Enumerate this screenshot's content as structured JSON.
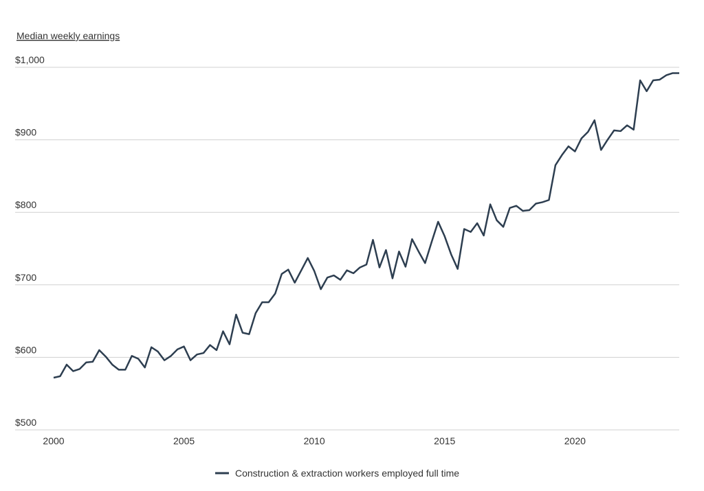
{
  "chart_data": {
    "type": "line",
    "y_axis_label": "Median weekly earnings",
    "x": [
      2000,
      2000.25,
      2000.5,
      2000.75,
      2001,
      2001.25,
      2001.5,
      2001.75,
      2002,
      2002.25,
      2002.5,
      2002.75,
      2003,
      2003.25,
      2003.5,
      2003.75,
      2004,
      2004.25,
      2004.5,
      2004.75,
      2005,
      2005.25,
      2005.5,
      2005.75,
      2006,
      2006.25,
      2006.5,
      2006.75,
      2007,
      2007.25,
      2007.5,
      2007.75,
      2008,
      2008.25,
      2008.5,
      2008.75,
      2009,
      2009.25,
      2009.5,
      2009.75,
      2010,
      2010.25,
      2010.5,
      2010.75,
      2011,
      2011.25,
      2011.5,
      2011.75,
      2012,
      2012.25,
      2012.5,
      2012.75,
      2013,
      2013.25,
      2013.5,
      2013.75,
      2014,
      2014.25,
      2014.5,
      2014.75,
      2015,
      2015.25,
      2015.5,
      2015.75,
      2016,
      2016.25,
      2016.5,
      2016.75,
      2017,
      2017.25,
      2017.5,
      2017.75,
      2018,
      2018.25,
      2018.5,
      2018.75,
      2019,
      2019.25,
      2019.5,
      2019.75,
      2020,
      2020.25,
      2020.5,
      2020.75,
      2021,
      2021.25,
      2021.5,
      2021.75,
      2022,
      2022.25,
      2022.5,
      2022.75,
      2023,
      2023.25,
      2023.5,
      2023.75,
      2024
    ],
    "series": [
      {
        "name": "Construction & extraction workers employed full time",
        "color": "#2d3e50",
        "values": [
          572,
          574,
          590,
          581,
          584,
          593,
          594,
          610,
          601,
          590,
          583,
          583,
          602,
          598,
          586,
          614,
          608,
          596,
          602,
          611,
          615,
          596,
          604,
          606,
          617,
          610,
          636,
          618,
          659,
          634,
          632,
          661,
          676,
          676,
          688,
          715,
          721,
          703,
          720,
          737,
          719,
          694,
          710,
          713,
          707,
          720,
          716,
          724,
          728,
          762,
          724,
          748,
          709,
          746,
          725,
          763,
          746,
          730,
          759,
          787,
          767,
          742,
          722,
          777,
          773,
          785,
          768,
          811,
          789,
          780,
          806,
          809,
          802,
          803,
          812,
          814,
          817,
          865,
          879,
          891,
          884,
          902,
          911,
          927,
          886,
          900,
          913,
          912,
          920,
          914,
          982,
          967,
          982,
          983,
          989,
          992,
          992
        ]
      }
    ],
    "xlim": [
      2000,
      2024
    ],
    "xticks": [
      2000,
      2005,
      2010,
      2015,
      2020
    ],
    "ylim": [
      500,
      1000
    ],
    "yticks": [
      {
        "value": 500,
        "label": "$500"
      },
      {
        "value": 600,
        "label": "$600"
      },
      {
        "value": 700,
        "label": "$700"
      },
      {
        "value": 800,
        "label": "$800"
      },
      {
        "value": 900,
        "label": "$900"
      },
      {
        "value": 1000,
        "label": "$1,000"
      }
    ],
    "grid": true,
    "legend": "bottom"
  }
}
